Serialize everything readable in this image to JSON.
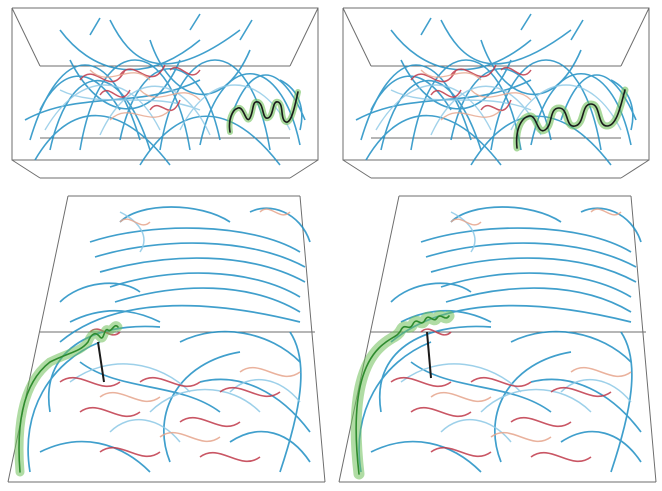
{
  "panels": [
    {
      "id": "top-left",
      "view": "side",
      "highlight": "small-helix"
    },
    {
      "id": "top-right",
      "view": "side",
      "highlight": "large-helix"
    },
    {
      "id": "bottom-left",
      "view": "oblique",
      "highlight": "small-helix"
    },
    {
      "id": "bottom-right",
      "view": "oblique",
      "highlight": "large-helix"
    }
  ],
  "colors": {
    "blue": "#1f8fc4",
    "lightblue": "#8cc8e6",
    "red": "#c0394a",
    "salmon": "#e6a58c",
    "highlight_green": "#6fbf5a",
    "highlight_core": "#1a1a1a",
    "box_edge": "#6e6e6e"
  }
}
